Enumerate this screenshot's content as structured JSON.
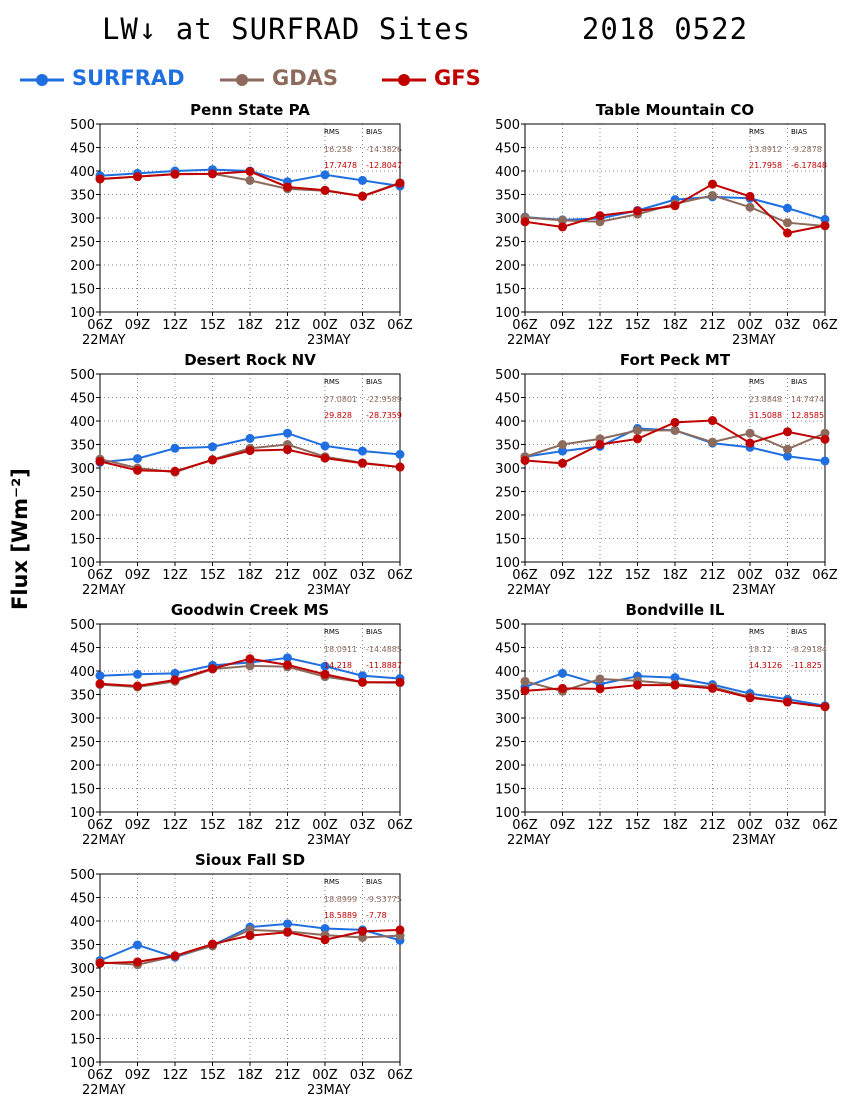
{
  "title": {
    "left": "LW↓ at SURFRAD Sites",
    "right": "2018 0522"
  },
  "y_axis_label": "Flux [Wm⁻²]",
  "legend": [
    {
      "label": "SURFRAD",
      "color": "#1f6fe0"
    },
    {
      "label": "GDAS",
      "color": "#8c6a5c"
    },
    {
      "label": "GFS",
      "color": "#c00000"
    }
  ],
  "stats_header": {
    "rms": "RMS",
    "bias": "BIAS"
  },
  "chart_data": [
    {
      "type": "line",
      "title": "Penn State PA",
      "x": [
        "06Z",
        "09Z",
        "12Z",
        "15Z",
        "18Z",
        "21Z",
        "00Z",
        "03Z",
        "06Z"
      ],
      "date_labels": [
        "22MAY",
        "23MAY"
      ],
      "ylim": [
        100,
        500
      ],
      "yticks": [
        100,
        150,
        200,
        250,
        300,
        350,
        400,
        450,
        500
      ],
      "grid": true,
      "series": [
        {
          "name": "SURFRAD",
          "values": [
            390,
            395,
            400,
            403,
            400,
            377,
            392,
            380,
            368
          ]
        },
        {
          "name": "GDAS",
          "values": [
            383,
            388,
            394,
            394,
            380,
            362,
            358,
            347,
            375
          ]
        },
        {
          "name": "GFS",
          "values": [
            383,
            388,
            393,
            394,
            399,
            366,
            359,
            346,
            374
          ]
        }
      ],
      "stats": {
        "gdas": {
          "rms": "16.258",
          "bias": "-14.3826"
        },
        "gfs": {
          "rms": "17.7478",
          "bias": "-12.8047"
        }
      }
    },
    {
      "type": "line",
      "title": "Table Mountain CO",
      "x": [
        "06Z",
        "09Z",
        "12Z",
        "15Z",
        "18Z",
        "21Z",
        "00Z",
        "03Z",
        "06Z"
      ],
      "date_labels": [
        "22MAY",
        "23MAY"
      ],
      "ylim": [
        100,
        500
      ],
      "yticks": [
        100,
        150,
        200,
        250,
        300,
        350,
        400,
        450,
        500
      ],
      "grid": true,
      "series": [
        {
          "name": "SURFRAD",
          "values": [
            302,
            296,
            299,
            316,
            339,
            345,
            342,
            321,
            297
          ]
        },
        {
          "name": "GDAS",
          "values": [
            301,
            295,
            292,
            308,
            330,
            348,
            323,
            290,
            283
          ]
        },
        {
          "name": "GFS",
          "values": [
            292,
            281,
            305,
            315,
            326,
            372,
            346,
            268,
            284
          ]
        }
      ],
      "stats": {
        "gdas": {
          "rms": "13.8912",
          "bias": "-9.2878"
        },
        "gfs": {
          "rms": "21.7958",
          "bias": "-6.17848"
        }
      }
    },
    {
      "type": "line",
      "title": "Desert Rock NV",
      "x": [
        "06Z",
        "09Z",
        "12Z",
        "15Z",
        "18Z",
        "21Z",
        "00Z",
        "03Z",
        "06Z"
      ],
      "date_labels": [
        "22MAY",
        "23MAY"
      ],
      "ylim": [
        100,
        500
      ],
      "yticks": [
        100,
        150,
        200,
        250,
        300,
        350,
        400,
        450,
        500
      ],
      "grid": true,
      "series": [
        {
          "name": "SURFRAD",
          "values": [
            312,
            320,
            342,
            345,
            363,
            374,
            347,
            336,
            329
          ]
        },
        {
          "name": "GDAS",
          "values": [
            319,
            300,
            291,
            318,
            342,
            350,
            324,
            311,
            302
          ]
        },
        {
          "name": "GFS",
          "values": [
            314,
            295,
            293,
            317,
            337,
            339,
            321,
            310,
            302
          ]
        }
      ],
      "stats": {
        "gdas": {
          "rms": "27.0801",
          "bias": "-22.9589"
        },
        "gfs": {
          "rms": "29.828",
          "bias": "-28.7359"
        }
      }
    },
    {
      "type": "line",
      "title": "Fort Peck MT",
      "x": [
        "06Z",
        "09Z",
        "12Z",
        "15Z",
        "18Z",
        "21Z",
        "00Z",
        "03Z",
        "06Z"
      ],
      "date_labels": [
        "22MAY",
        "23MAY"
      ],
      "ylim": [
        100,
        500
      ],
      "yticks": [
        100,
        150,
        200,
        250,
        300,
        350,
        400,
        450,
        500
      ],
      "grid": true,
      "series": [
        {
          "name": "SURFRAD",
          "values": [
            324,
            336,
            346,
            384,
            380,
            353,
            344,
            325,
            315
          ]
        },
        {
          "name": "GDAS",
          "values": [
            324,
            350,
            362,
            380,
            380,
            355,
            374,
            340,
            374
          ]
        },
        {
          "name": "GFS",
          "values": [
            316,
            310,
            350,
            362,
            397,
            401,
            353,
            377,
            361
          ]
        }
      ],
      "stats": {
        "gdas": {
          "rms": "23.8848",
          "bias": "14.7474"
        },
        "gfs": {
          "rms": "31.5088",
          "bias": "12.8585"
        }
      }
    },
    {
      "type": "line",
      "title": "Goodwin Creek MS",
      "x": [
        "06Z",
        "09Z",
        "12Z",
        "15Z",
        "18Z",
        "21Z",
        "00Z",
        "03Z",
        "06Z"
      ],
      "date_labels": [
        "22MAY",
        "23MAY"
      ],
      "ylim": [
        100,
        500
      ],
      "yticks": [
        100,
        150,
        200,
        250,
        300,
        350,
        400,
        450,
        500
      ],
      "grid": true,
      "series": [
        {
          "name": "SURFRAD",
          "values": [
            390,
            393,
            395,
            412,
            418,
            428,
            410,
            390,
            384
          ]
        },
        {
          "name": "GDAS",
          "values": [
            371,
            366,
            378,
            404,
            411,
            409,
            388,
            376,
            375
          ]
        },
        {
          "name": "GFS",
          "values": [
            373,
            368,
            381,
            405,
            426,
            413,
            393,
            376,
            376
          ]
        }
      ],
      "stats": {
        "gdas": {
          "rms": "18.0911",
          "bias": "-14.4885"
        },
        "gfs": {
          "rms": "14.218",
          "bias": "-11.8887"
        }
      }
    },
    {
      "type": "line",
      "title": "Bondville IL",
      "x": [
        "06Z",
        "09Z",
        "12Z",
        "15Z",
        "18Z",
        "21Z",
        "00Z",
        "03Z",
        "06Z"
      ],
      "date_labels": [
        "22MAY",
        "23MAY"
      ],
      "ylim": [
        100,
        500
      ],
      "yticks": [
        100,
        150,
        200,
        250,
        300,
        350,
        400,
        450,
        500
      ],
      "grid": true,
      "series": [
        {
          "name": "SURFRAD",
          "values": [
            366,
            395,
            372,
            389,
            386,
            371,
            352,
            340,
            326
          ]
        },
        {
          "name": "GDAS",
          "values": [
            378,
            357,
            383,
            379,
            372,
            366,
            345,
            334,
            324
          ]
        },
        {
          "name": "GFS",
          "values": [
            358,
            363,
            362,
            370,
            370,
            363,
            343,
            334,
            324
          ]
        }
      ],
      "stats": {
        "gdas": {
          "rms": "18.12",
          "bias": "-8.29184"
        },
        "gfs": {
          "rms": "14.3126",
          "bias": "-11.825"
        }
      }
    },
    {
      "type": "line",
      "title": "Sioux Fall SD",
      "x": [
        "06Z",
        "09Z",
        "12Z",
        "15Z",
        "18Z",
        "21Z",
        "00Z",
        "03Z",
        "06Z"
      ],
      "date_labels": [
        "22MAY",
        "23MAY"
      ],
      "ylim": [
        100,
        500
      ],
      "yticks": [
        100,
        150,
        200,
        250,
        300,
        350,
        400,
        450,
        500
      ],
      "grid": true,
      "series": [
        {
          "name": "SURFRAD",
          "values": [
            316,
            349,
            323,
            348,
            387,
            394,
            384,
            381,
            359
          ]
        },
        {
          "name": "GDAS",
          "values": [
            312,
            307,
            325,
            347,
            381,
            378,
            370,
            365,
            369
          ]
        },
        {
          "name": "GFS",
          "values": [
            310,
            313,
            326,
            351,
            369,
            376,
            360,
            378,
            381
          ]
        }
      ],
      "stats": {
        "gdas": {
          "rms": "18.8999",
          "bias": "-9.53775"
        },
        "gfs": {
          "rms": "18.5889",
          "bias": "-7.78"
        }
      }
    }
  ]
}
